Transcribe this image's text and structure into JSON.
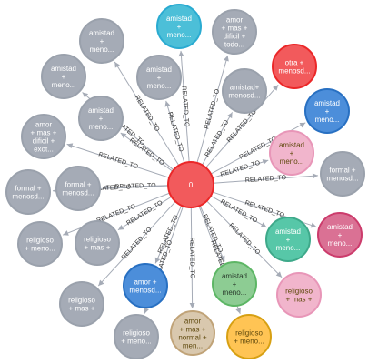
{
  "graph": {
    "center": {
      "label": "0",
      "fill": "#f25a5c",
      "stroke": "#eb2728"
    },
    "edge_label": "RELATED_TO",
    "nodes": [
      {
        "lines": [
          "amistad",
          "+",
          "meno..."
        ],
        "fill": "#a5abb6",
        "stroke": "#9aa1ac",
        "text": "#ffffff"
      },
      {
        "lines": [
          "amistad",
          "+",
          "meno..."
        ],
        "fill": "#4cbfd8",
        "stroke": "#2aabd1",
        "text": "#ffffff"
      },
      {
        "lines": [
          "amor",
          "+ mas +",
          "dificil +",
          "todo..."
        ],
        "fill": "#a5abb6",
        "stroke": "#9aa1ac",
        "text": "#ffffff"
      },
      {
        "lines": [
          "amistad",
          "+",
          "meno..."
        ],
        "fill": "#a5abb6",
        "stroke": "#9aa1ac",
        "text": "#ffffff"
      },
      {
        "lines": [
          "amistad",
          "+",
          "meno..."
        ],
        "fill": "#a5abb6",
        "stroke": "#9aa1ac",
        "text": "#ffffff"
      },
      {
        "lines": [
          "amistad+",
          "menosd..."
        ],
        "fill": "#a5abb6",
        "stroke": "#9aa1ac",
        "text": "#ffffff"
      },
      {
        "lines": [
          "otra +",
          "menosd..."
        ],
        "fill": "#f25a5c",
        "stroke": "#eb2728",
        "text": "#ffffff"
      },
      {
        "lines": [
          "amor",
          "+ mas +",
          "dificil +",
          "exot..."
        ],
        "fill": "#a5abb6",
        "stroke": "#9aa1ac",
        "text": "#ffffff"
      },
      {
        "lines": [
          "amistad",
          "+",
          "meno..."
        ],
        "fill": "#a5abb6",
        "stroke": "#9aa1ac",
        "text": "#ffffff"
      },
      {
        "lines": [
          "amistad",
          "+",
          "meno..."
        ],
        "fill": "#4c8eda",
        "stroke": "#2870c2",
        "text": "#ffffff"
      },
      {
        "lines": [
          "amistad",
          "+",
          "meno..."
        ],
        "fill": "#f1b5cc",
        "stroke": "#e896b8",
        "text": "#604a0e"
      },
      {
        "lines": [
          "formal +",
          "menosd..."
        ],
        "fill": "#a5abb6",
        "stroke": "#9aa1ac",
        "text": "#ffffff"
      },
      {
        "lines": [
          "formal +",
          "menosd..."
        ],
        "fill": "#a5abb6",
        "stroke": "#9aa1ac",
        "text": "#ffffff"
      },
      {
        "lines": [
          "formal +",
          "menosd..."
        ],
        "fill": "#a5abb6",
        "stroke": "#9aa1ac",
        "text": "#ffffff"
      },
      {
        "lines": [
          "religioso",
          "+ meno..."
        ],
        "fill": "#a5abb6",
        "stroke": "#9aa1ac",
        "text": "#ffffff"
      },
      {
        "lines": [
          "religioso",
          "+ mas +"
        ],
        "fill": "#a5abb6",
        "stroke": "#9aa1ac",
        "text": "#ffffff"
      },
      {
        "lines": [
          "amistad",
          "+",
          "meno..."
        ],
        "fill": "#57c7a8",
        "stroke": "#3ea98a",
        "text": "#ffffff"
      },
      {
        "lines": [
          "amistad",
          "+",
          "meno..."
        ],
        "fill": "#da7194",
        "stroke": "#cc3c6c",
        "text": "#ffffff"
      },
      {
        "lines": [
          "religioso",
          "+ mas +"
        ],
        "fill": "#a5abb6",
        "stroke": "#9aa1ac",
        "text": "#ffffff"
      },
      {
        "lines": [
          "amor +",
          "menosd..."
        ],
        "fill": "#4c8eda",
        "stroke": "#2870c2",
        "text": "#ffffff"
      },
      {
        "lines": [
          "amistad",
          "+",
          "meno..."
        ],
        "fill": "#8dcc93",
        "stroke": "#5db665",
        "text": "#2a3b2d"
      },
      {
        "lines": [
          "religioso",
          "+ mas +"
        ],
        "fill": "#f1b5cc",
        "stroke": "#e896b8",
        "text": "#604a0e"
      },
      {
        "lines": [
          "religioso",
          "+ meno..."
        ],
        "fill": "#a5abb6",
        "stroke": "#9aa1ac",
        "text": "#ffffff"
      },
      {
        "lines": [
          "amor",
          "+ mas +",
          "normal +",
          "men..."
        ],
        "fill": "#d9c8ae",
        "stroke": "#c0a378",
        "text": "#604a0e"
      },
      {
        "lines": [
          "religioso",
          "+ meno..."
        ],
        "fill": "#ffc454",
        "stroke": "#d7a013",
        "text": "#604a0e"
      }
    ]
  }
}
